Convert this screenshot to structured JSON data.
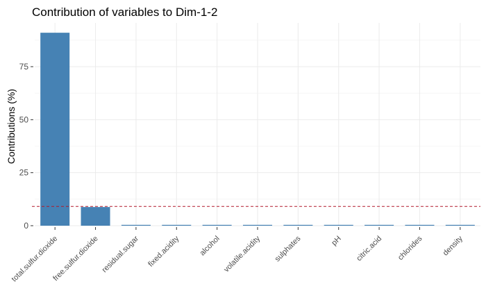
{
  "chart_data": {
    "type": "bar",
    "title": "Contribution of variables to Dim-1-2",
    "xlabel": "",
    "ylabel": "Contributions (%)",
    "categories": [
      "total.sulfur.dioxide",
      "free.sulfur.dioxide",
      "residual.sugar",
      "fixed.acidity",
      "alcohol",
      "volatile.acidity",
      "sulphates",
      "pH",
      "citric.acid",
      "chlorides",
      "density"
    ],
    "values": [
      91.0,
      8.8,
      0.05,
      0.05,
      0.05,
      0.05,
      0.05,
      0.05,
      0.05,
      0.05,
      0.05
    ],
    "yticks": [
      "0",
      "25",
      "50",
      "75"
    ],
    "ylim": [
      0,
      95
    ],
    "reference_line": {
      "value": 9.09,
      "style": "dashed",
      "color": "#B2182B"
    },
    "bar_color": "#4682B4",
    "grid": true,
    "legend": "none"
  }
}
